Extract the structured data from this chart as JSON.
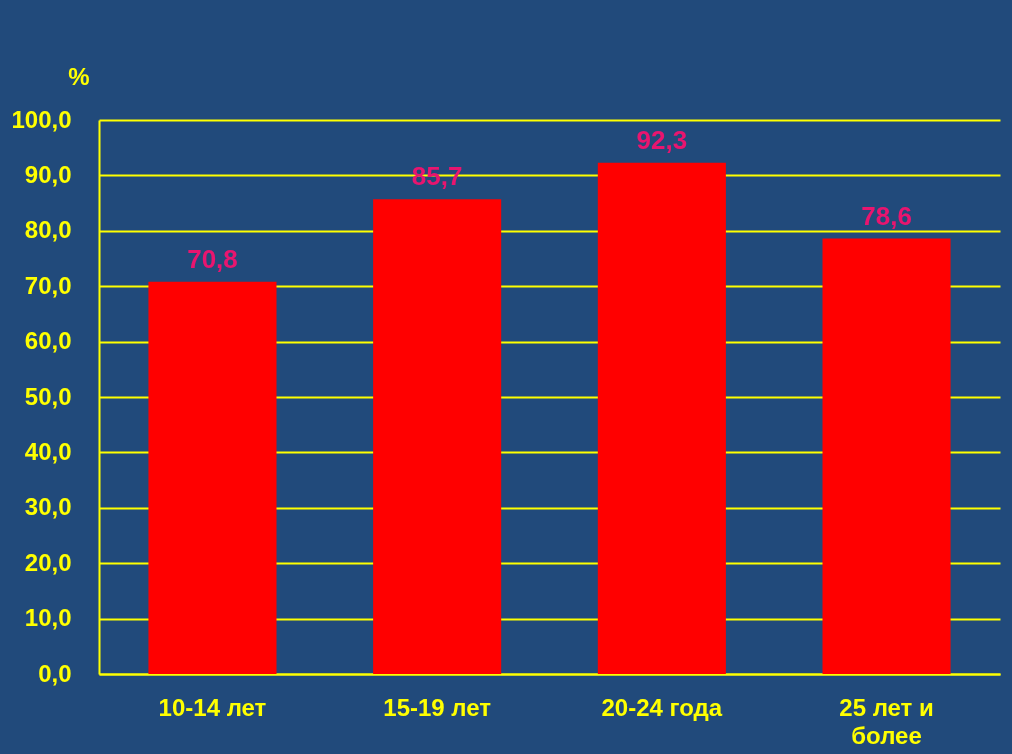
{
  "chart_data": {
    "type": "bar",
    "ylabel": "%",
    "categories": [
      "10-14 лет",
      "15-19 лет",
      "20-24 года",
      "25 лет и более"
    ],
    "values": [
      70.8,
      85.7,
      92.3,
      78.6
    ],
    "value_labels": [
      "70,8",
      "85,7",
      "92,3",
      "78,6"
    ],
    "color": "#ff0000",
    "ylim": [
      0,
      100
    ],
    "yticks": [
      {
        "value": 0,
        "label": "0,0"
      },
      {
        "value": 10,
        "label": "10,0"
      },
      {
        "value": 20,
        "label": "20,0"
      },
      {
        "value": 30,
        "label": "30,0"
      },
      {
        "value": 40,
        "label": "40,0"
      },
      {
        "value": 50,
        "label": "50,0"
      },
      {
        "value": 60,
        "label": "60,0"
      },
      {
        "value": 70,
        "label": "70,0"
      },
      {
        "value": 80,
        "label": "80,0"
      },
      {
        "value": 90,
        "label": "90,0"
      },
      {
        "value": 100,
        "label": "100,0"
      }
    ],
    "grid": "y"
  }
}
